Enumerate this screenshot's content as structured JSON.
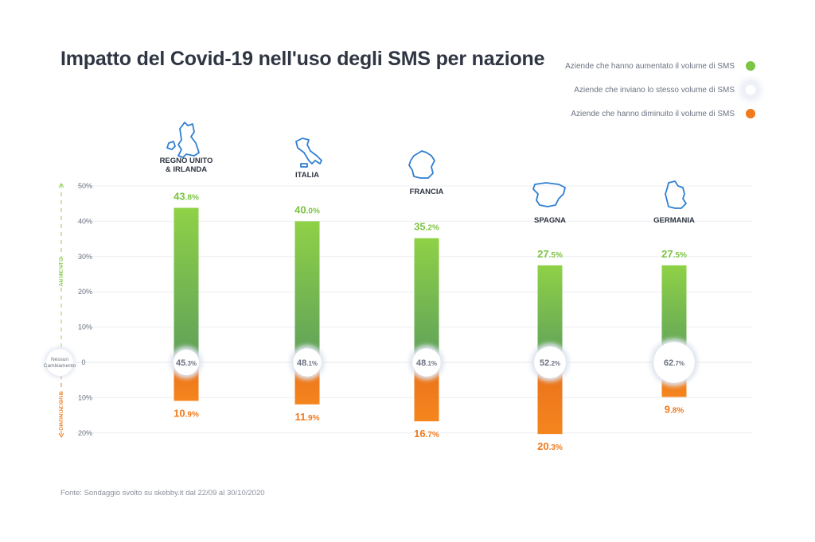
{
  "title": "Impatto del Covid-19 nell'uso degli SMS per nazione",
  "legend": [
    {
      "label": "Aziende che hanno aumentato il volume di SMS",
      "color": "#7cc443"
    },
    {
      "label": "Aziende che inviano lo stesso volume di SMS",
      "color": "#ffffff"
    },
    {
      "label": "Aziende che hanno diminuito il volume di SMS",
      "color": "#f07a1c"
    }
  ],
  "source": "Fonte:  Sondaggio svolto su skebby.it dal 22/09 al 30/10/2020",
  "chart_data": {
    "type": "bar",
    "title": "Impatto del Covid-19 nell'uso degli SMS per nazione",
    "categories": [
      "REGNO UNITO & IRLANDA",
      "ITALIA",
      "FRANCIA",
      "SPAGNA",
      "GERMANIA"
    ],
    "category_lines": [
      [
        "REGNO UNITO",
        "& IRLANDA"
      ],
      [
        "ITALIA"
      ],
      [
        "FRANCIA"
      ],
      [
        "SPAGNA"
      ],
      [
        "GERMANIA"
      ]
    ],
    "series": [
      {
        "name": "Aziende che hanno aumentato il volume di SMS",
        "values": [
          43.8,
          40.0,
          35.2,
          27.5,
          27.5
        ],
        "labels": [
          "43.8%",
          "40.0%",
          "35.2%",
          "27.5%",
          "27.5%"
        ],
        "color": "#7cc443"
      },
      {
        "name": "Aziende che inviano lo stesso volume di SMS",
        "values": [
          45.3,
          48.1,
          48.1,
          52.2,
          62.7
        ],
        "labels": [
          "45.3%",
          "48.1%",
          "48.1%",
          "52.2%",
          "62.7%"
        ],
        "color": "#ffffff"
      },
      {
        "name": "Aziende che hanno diminuito il volume di SMS",
        "values": [
          10.9,
          11.9,
          16.7,
          20.3,
          9.8
        ],
        "labels": [
          "10.9%",
          "11.9%",
          "16.7%",
          "20.3%",
          "9.8%"
        ],
        "color": "#f07a1c"
      }
    ],
    "y_ticks_up": [
      "50%",
      "40%",
      "30%",
      "20%",
      "10%"
    ],
    "y_tick_zero": "0",
    "y_ticks_down": [
      "10%",
      "20%"
    ],
    "zero_label": [
      "Nessun",
      "Cambiamento"
    ],
    "axis_up_label": "AUMENTO",
    "axis_down_label": "DIMINUZIONE",
    "ylim_up": [
      0,
      50
    ],
    "ylim_down": [
      0,
      20
    ],
    "grid": true,
    "legend_position": "top-right"
  }
}
